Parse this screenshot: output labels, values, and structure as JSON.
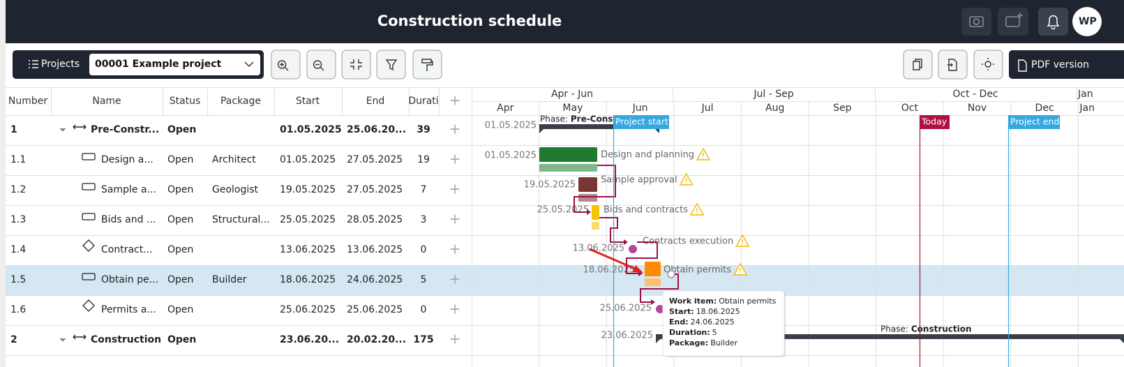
{
  "header": {
    "title": "Construction schedule",
    "avatar": "WP"
  },
  "toolbar": {
    "projects_button": "Projects",
    "project_select": "00001 Example project",
    "pdf_button": "PDF version"
  },
  "table": {
    "columns": [
      "Number",
      "Name",
      "Status",
      "Package",
      "Start",
      "End",
      "Durati"
    ],
    "rows": [
      {
        "number": "1",
        "name": "Pre-Constr...",
        "status": "Open",
        "start": "01.05.2025",
        "end": "25.06.20...",
        "duration": 39
      },
      {
        "number": "1.1",
        "name": "Design a...",
        "status": "Open",
        "package": "Architect",
        "start": "01.05.2025",
        "end": "27.05.2025",
        "duration": 19
      },
      {
        "number": "1.2",
        "name": "Sample a...",
        "status": "Open",
        "package": "Geologist",
        "start": "19.05.2025",
        "end": "27.05.2025",
        "duration": 7
      },
      {
        "number": "1.3",
        "name": "Bids and ...",
        "status": "Open",
        "package": "Structural...",
        "start": "25.05.2025",
        "end": "28.05.2025",
        "duration": 3
      },
      {
        "number": "1.4",
        "name": "Contract...",
        "status": "Open",
        "start": "13.06.2025",
        "end": "13.06.2025",
        "duration": 0
      },
      {
        "number": "1.5",
        "name": "Obtain pe...",
        "status": "Open",
        "package": "Builder",
        "start": "18.06.2025",
        "end": "24.06.2025",
        "duration": 5
      },
      {
        "number": "1.6",
        "name": "Permits a...",
        "status": "Open",
        "start": "25.06.2025",
        "end": "25.06.2025",
        "duration": 0
      },
      {
        "number": "2",
        "name": "Construction",
        "status": "Open",
        "start": "23.06.20...",
        "end": "20.02.20...",
        "duration": 175
      }
    ]
  },
  "gantt": {
    "quarters": [
      "Apr - Jun",
      "Jul - Sep",
      "Oct - Dec",
      "Jan"
    ],
    "months": [
      "Apr",
      "May",
      "Jun",
      "Jul",
      "Aug",
      "Sep",
      "Oct",
      "Nov",
      "Dec",
      "Jan"
    ],
    "markers": {
      "project_start": "Project start",
      "today": "Today",
      "project_end": "Project end"
    },
    "phases": [
      {
        "prefix": "Phase:",
        "name": "Pre-Const",
        "date": "01.05.2025"
      },
      {
        "prefix": "Phase:",
        "name": "Construction",
        "date": "23.06.2025"
      }
    ],
    "tasks": [
      {
        "date": "01.05.2025",
        "label": "Design and planning"
      },
      {
        "date": "19.05.2025",
        "label": "Sample approval"
      },
      {
        "date": "25.05.2025",
        "label": "Bids and contracts"
      },
      {
        "date": "13.06.2025",
        "label": "Contracts execution"
      },
      {
        "date": "18.06.2025",
        "label": "Obtain permits"
      },
      {
        "date": "25.06.2025"
      }
    ],
    "tooltip": [
      {
        "key": "Work item:",
        "value": "Obtain permits"
      },
      {
        "key": "Start:",
        "value": "18.06.2025"
      },
      {
        "key": "End:",
        "value": "24.06.2025"
      },
      {
        "key": "Duration:",
        "value": 5
      },
      {
        "key": "Package:",
        "value": "Builder"
      }
    ]
  }
}
